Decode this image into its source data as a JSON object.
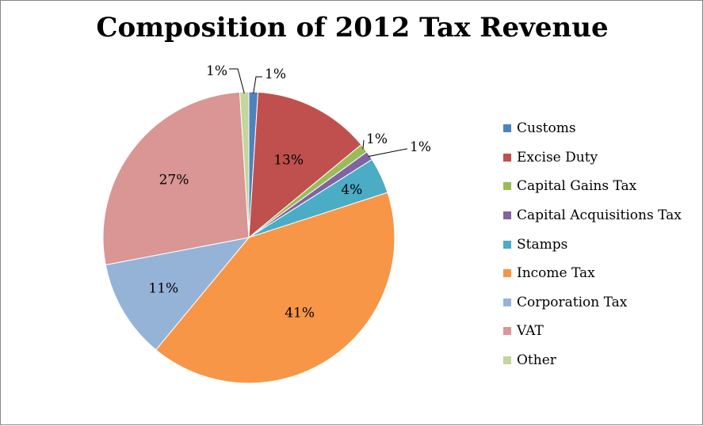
{
  "chart_data": {
    "type": "pie",
    "title": "Composition of 2012 Tax Revenue",
    "legend_position": "right",
    "slices": [
      {
        "name": "Customs",
        "value": 1,
        "label": "1%",
        "color": "#4F81BD"
      },
      {
        "name": "Excise Duty",
        "value": 13,
        "label": "13%",
        "color": "#C0504D"
      },
      {
        "name": "Capital Gains Tax",
        "value": 1,
        "label": "1%",
        "color": "#9BBB59"
      },
      {
        "name": "Capital Acquisitions Tax",
        "value": 1,
        "label": "1%",
        "color": "#8064A2"
      },
      {
        "name": "Stamps",
        "value": 4,
        "label": "4%",
        "color": "#4BACC6"
      },
      {
        "name": "Income Tax",
        "value": 41,
        "label": "41%",
        "color": "#F79646"
      },
      {
        "name": "Corporation Tax",
        "value": 11,
        "label": "11%",
        "color": "#95B3D7"
      },
      {
        "name": "VAT",
        "value": 27,
        "label": "27%",
        "color": "#D99694"
      },
      {
        "name": "Other",
        "value": 1,
        "label": "1%",
        "color": "#C3D69B"
      }
    ]
  }
}
